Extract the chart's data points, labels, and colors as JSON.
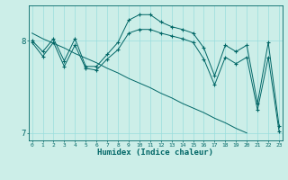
{
  "xlabel": "Humidex (Indice chaleur)",
  "bg_color": "#cceee8",
  "line_color": "#006666",
  "grid_color": "#99dddd",
  "hours": [
    0,
    1,
    2,
    3,
    4,
    5,
    6,
    7,
    8,
    9,
    10,
    11,
    12,
    13,
    14,
    15,
    16,
    17,
    18,
    19,
    20,
    21,
    22,
    23
  ],
  "line_upper": [
    8.0,
    7.88,
    8.02,
    7.78,
    8.02,
    7.72,
    7.72,
    7.85,
    7.98,
    8.22,
    8.28,
    8.28,
    8.2,
    8.15,
    8.12,
    8.08,
    7.92,
    7.62,
    7.95,
    7.88,
    7.95,
    7.32,
    7.98,
    7.08
  ],
  "line_lower": [
    7.98,
    7.83,
    7.98,
    7.72,
    7.95,
    7.7,
    7.68,
    7.8,
    7.9,
    8.08,
    8.12,
    8.12,
    8.08,
    8.05,
    8.02,
    7.98,
    7.8,
    7.52,
    7.82,
    7.75,
    7.82,
    7.25,
    7.82,
    7.02
  ],
  "line_diag": [
    8.08,
    8.02,
    7.97,
    7.92,
    7.86,
    7.81,
    7.76,
    7.7,
    7.65,
    7.59,
    7.54,
    7.49,
    7.43,
    7.38,
    7.32,
    7.27,
    7.22,
    7.16,
    7.11,
    7.05,
    7.0,
    null,
    null,
    null
  ],
  "ylim": [
    6.92,
    8.38
  ],
  "yticks": [
    7.0,
    8.0
  ],
  "xlim": [
    -0.3,
    23.3
  ],
  "figsize": [
    3.2,
    2.0
  ],
  "dpi": 100
}
